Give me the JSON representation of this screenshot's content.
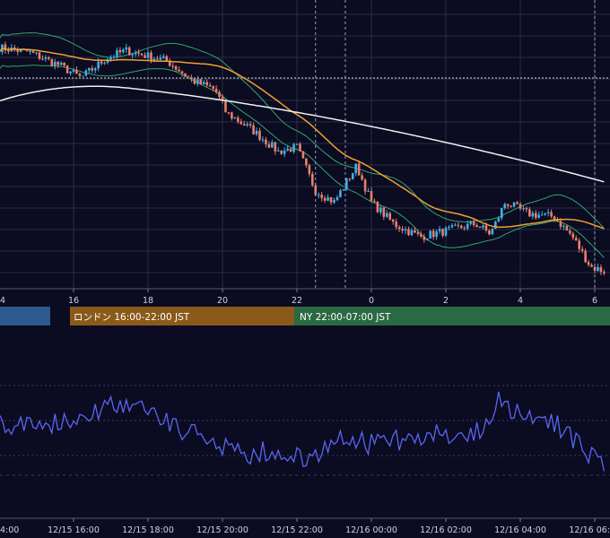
{
  "colors": {
    "background": "#0b0b22",
    "grid": "#2a2d45",
    "candle_up": "#3fb0e8",
    "candle_down": "#e8806a",
    "bollinger": "#2ea86a",
    "ma_short": "#f0a030",
    "ma_long": "#f0f0f0",
    "oscillator": "#5a66f0",
    "session_tokyo": "#2c5a8c",
    "session_london": "#8a5a1a",
    "session_ny": "#2a6a42"
  },
  "sessions": {
    "tokyo": {
      "label": ""
    },
    "london": {
      "label": "ロンドン 16:00-22:00 JST"
    },
    "ny": {
      "label": "NY 22:00-07:00 JST"
    }
  },
  "chart_data": [
    {
      "type": "candlestick",
      "title": "",
      "x_axis": {
        "unit": "hour",
        "range": [
          14,
          30.3
        ],
        "tick_labels": [
          "4",
          "16",
          "18",
          "20",
          "22",
          "0",
          "2",
          "4",
          "6"
        ]
      },
      "grid": true,
      "candles": [],
      "series": [
        {
          "name": "",
          "kind": "bollinger_upper",
          "values": []
        },
        {
          "name": "",
          "kind": "bollinger_lower",
          "values": []
        },
        {
          "name": "",
          "kind": "moving_average_short",
          "values": []
        },
        {
          "name": "",
          "kind": "moving_average_long",
          "values": []
        }
      ],
      "vertical_markers_hour": [
        22.5,
        23.3,
        30.0
      ]
    },
    {
      "type": "line",
      "title": "",
      "x_axis": {
        "tick_labels": [
          "4:00",
          "12/15 16:00",
          "12/15 18:00",
          "12/15 20:00",
          "12/15 22:00",
          "12/16 00:00",
          "12/16 02:00",
          "12/16 04:00",
          "12/16 06:"
        ]
      },
      "grid": true,
      "series": [
        {
          "name": "",
          "values": []
        }
      ]
    }
  ]
}
